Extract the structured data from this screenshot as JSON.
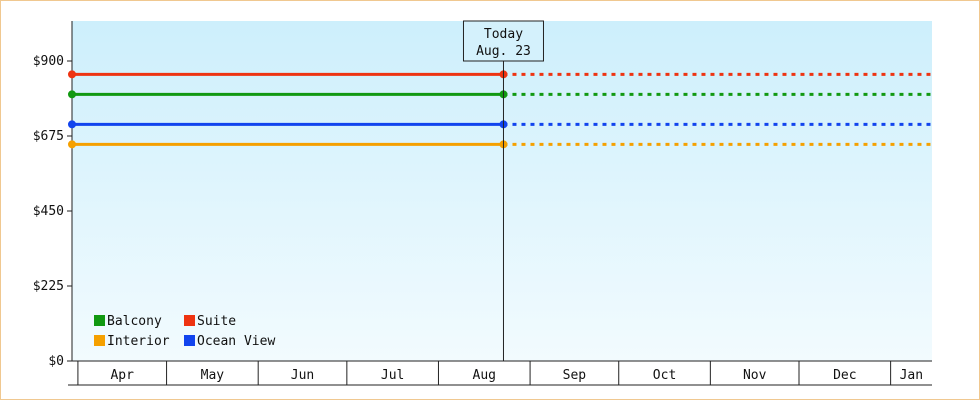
{
  "chart_data": {
    "type": "line",
    "title": "",
    "xlabel": "",
    "ylabel": "",
    "categories": [
      "Apr",
      "May",
      "Jun",
      "Jul",
      "Aug",
      "Sep",
      "Oct",
      "Nov",
      "Dec",
      "Jan"
    ],
    "x_range": [
      "2023-03-30",
      "2024-01-15"
    ],
    "ylim": [
      0,
      1020
    ],
    "y_ticks": [
      0,
      225,
      450,
      675,
      900
    ],
    "y_tick_labels": [
      "$0",
      "$225",
      "$450",
      "$675",
      "$900"
    ],
    "today_marker": {
      "date": "2023-08-23",
      "label_line1": "Today",
      "label_line2": "Aug. 23"
    },
    "series": [
      {
        "name": "Suite",
        "color": "#ee3311",
        "value": 860,
        "start": "2023-03-30",
        "today": "2023-08-23",
        "end": "2024-01-15"
      },
      {
        "name": "Balcony",
        "color": "#119911",
        "value": 800,
        "start": "2023-03-30",
        "today": "2023-08-23",
        "end": "2024-01-15"
      },
      {
        "name": "Ocean View",
        "color": "#1144ee",
        "value": 710,
        "start": "2023-03-30",
        "today": "2023-08-23",
        "end": "2024-01-15"
      },
      {
        "name": "Interior",
        "color": "#f5a000",
        "value": 650,
        "start": "2023-03-30",
        "today": "2023-08-23",
        "end": "2024-01-15"
      }
    ],
    "legend": {
      "placement": "bottom-left",
      "order": [
        "Balcony",
        "Suite",
        "Interior",
        "Ocean View"
      ]
    },
    "background_gradient": [
      "#cdeffc",
      "#f2fbfe"
    ],
    "grid": false
  }
}
